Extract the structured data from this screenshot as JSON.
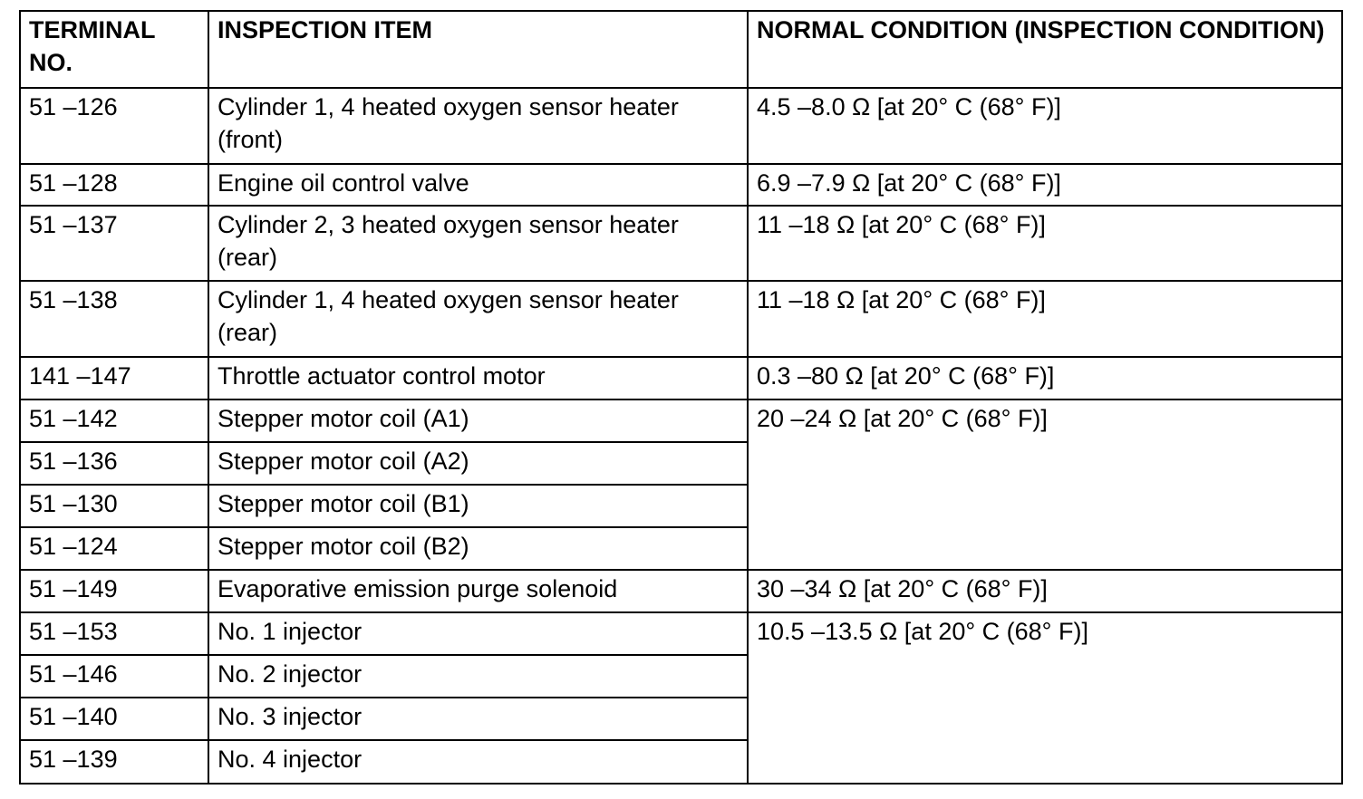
{
  "headers": [
    "TERMINAL NO.",
    "INSPECTION ITEM",
    "NORMAL CONDITION (INSPECTION CONDITION)"
  ],
  "rows": [
    {
      "terminal": "51 –126",
      "item": "Cylinder 1, 4 heated oxygen sensor heater (front)",
      "condition": "4.5 –8.0 Ω [at 20° C (68° F)]",
      "span": 1
    },
    {
      "terminal": "51 –128",
      "item": "Engine oil control valve",
      "condition": "6.9 –7.9 Ω [at 20° C (68° F)]",
      "span": 1
    },
    {
      "terminal": "51 –137",
      "item": "Cylinder 2, 3 heated oxygen sensor heater (rear)",
      "condition": "11 –18 Ω [at 20° C (68° F)]",
      "span": 1
    },
    {
      "terminal": "51 –138",
      "item": "Cylinder 1, 4 heated oxygen sensor heater (rear)",
      "condition": "11 –18 Ω [at 20° C (68° F)]",
      "span": 1
    },
    {
      "terminal": "141 –147",
      "item": "Throttle actuator control motor",
      "condition": "0.3 –80 Ω [at 20° C (68° F)]",
      "span": 1
    },
    {
      "terminal": "51 –142",
      "item": "Stepper motor coil (A1)",
      "condition": "20 –24 Ω [at 20° C (68° F)]",
      "span": 4
    },
    {
      "terminal": "51 –136",
      "item": "Stepper motor coil (A2)",
      "condition": null,
      "span": 0
    },
    {
      "terminal": "51 –130",
      "item": "Stepper motor coil (B1)",
      "condition": null,
      "span": 0
    },
    {
      "terminal": "51 –124",
      "item": "Stepper motor coil (B2)",
      "condition": null,
      "span": 0
    },
    {
      "terminal": "51 –149",
      "item": "Evaporative emission purge solenoid",
      "condition": "30 –34 Ω [at 20° C (68° F)]",
      "span": 1
    },
    {
      "terminal": "51 –153",
      "item": "No. 1 injector",
      "condition": "10.5 –13.5 Ω [at 20° C (68° F)]",
      "span": 4
    },
    {
      "terminal": "51 –146",
      "item": "No. 2 injector",
      "condition": null,
      "span": 0
    },
    {
      "terminal": "51 –140",
      "item": "No. 3 injector",
      "condition": null,
      "span": 0
    },
    {
      "terminal": "51 –139",
      "item": "No. 4 injector",
      "condition": null,
      "span": 0
    }
  ]
}
